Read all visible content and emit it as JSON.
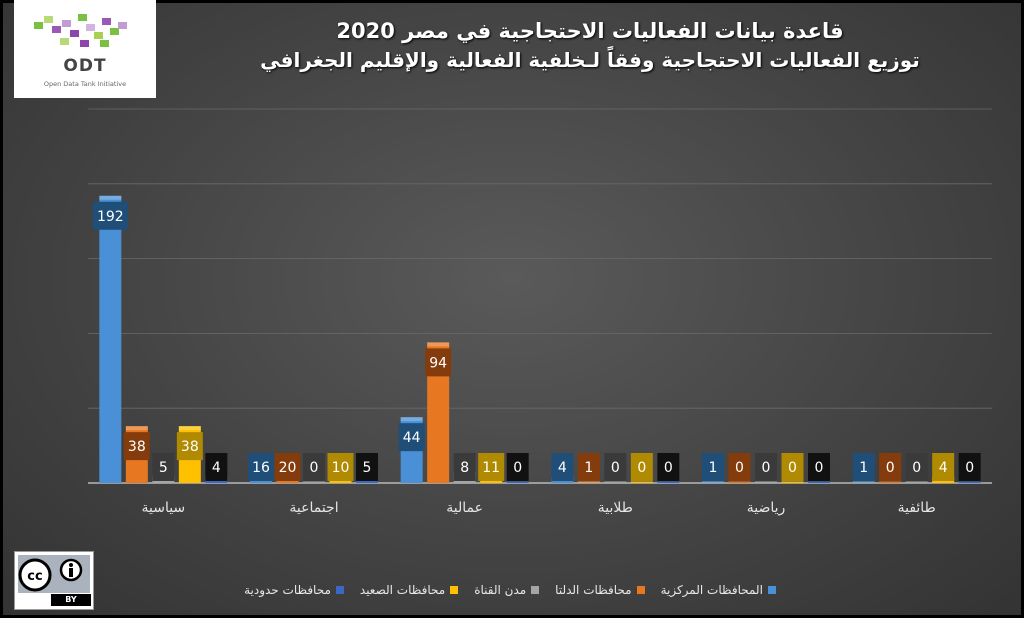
{
  "logo": {
    "name": "ODT",
    "tagline": "Open Data Tank Initiative"
  },
  "license": {
    "text": "BY"
  },
  "chart_data": {
    "type": "bar",
    "title": "قاعدة بيانات الفعاليات الاحتجاجية في مصر 2020",
    "subtitle": "توزيع الفعاليات الاحتجاجية وفقاً لـخلفية الفعالية والإقليم الجغرافي",
    "categories": [
      "سياسية",
      "اجتماعية",
      "عمالية",
      "طلابية",
      "رياضية",
      "طائفية"
    ],
    "series": [
      {
        "name": "المحافظات المركزية",
        "color": "#4a90d6",
        "label_bg": "#1f4e79",
        "values": [
          192,
          16,
          44,
          4,
          1,
          1
        ]
      },
      {
        "name": "محافظات الدلتا",
        "color": "#e87722",
        "label_bg": "#843c0c",
        "values": [
          38,
          20,
          94,
          1,
          0,
          0
        ]
      },
      {
        "name": "مدن القناة",
        "color": "#a5a5a5",
        "label_bg": "#3a3a3a",
        "values": [
          5,
          0,
          8,
          0,
          0,
          0
        ]
      },
      {
        "name": "محافظات الصعيد",
        "color": "#ffc000",
        "label_bg": "#b08a00",
        "values": [
          38,
          10,
          11,
          0,
          0,
          4
        ]
      },
      {
        "name": "محافظات حدودية",
        "color": "#3a68c4",
        "label_bg": "#111111",
        "values": [
          4,
          5,
          0,
          0,
          0,
          0
        ]
      }
    ],
    "ylim": [
      0,
      250
    ],
    "grid": true,
    "legend_position": "bottom"
  }
}
